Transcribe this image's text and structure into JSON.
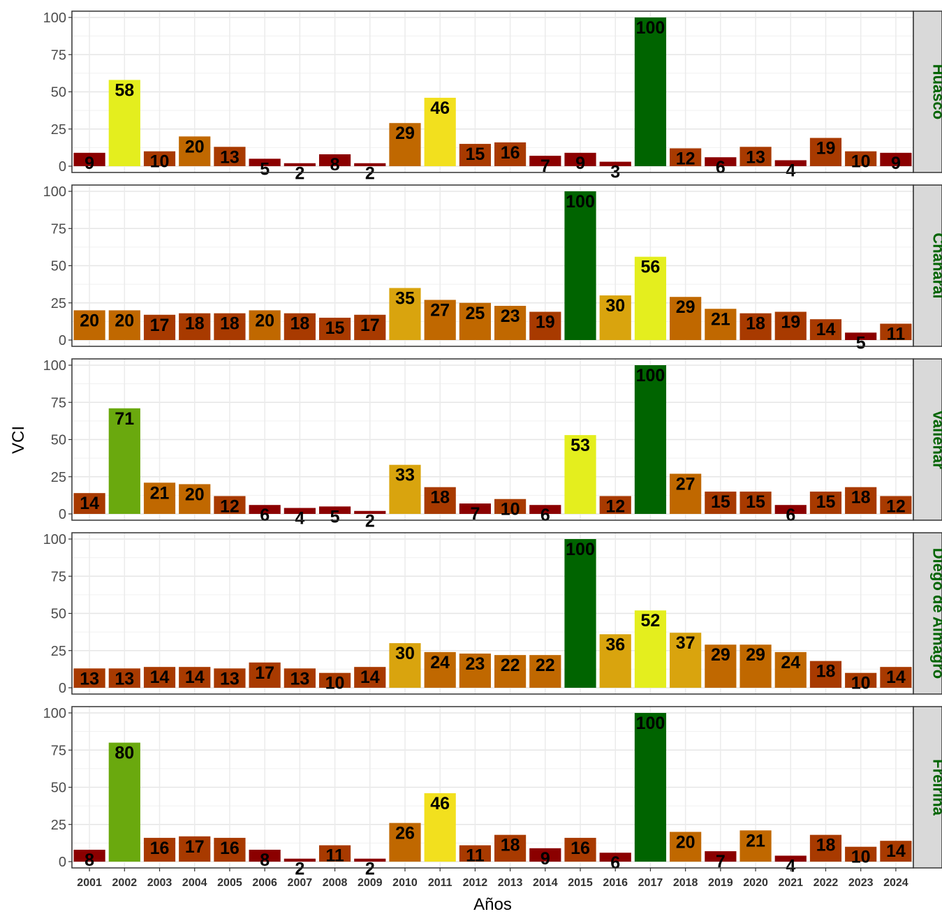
{
  "chart_data": {
    "type": "bar",
    "xlabel": "Años",
    "ylabel": "VCI",
    "ylim": [
      0,
      100
    ],
    "yticks": [
      0,
      25,
      50,
      75,
      100
    ],
    "grid": true,
    "categories": [
      "2001",
      "2002",
      "2003",
      "2004",
      "2005",
      "2006",
      "2007",
      "2008",
      "2009",
      "2010",
      "2011",
      "2012",
      "2013",
      "2014",
      "2015",
      "2016",
      "2017",
      "2018",
      "2019",
      "2020",
      "2021",
      "2022",
      "2023",
      "2024"
    ],
    "strip_text_color": "#006400",
    "color_scale": [
      "#8b0000",
      "#a83a00",
      "#c06800",
      "#d9a40e",
      "#e4ee1e",
      "#f2e01e",
      "#6aa90e",
      "#006400"
    ],
    "series": [
      {
        "name": "Huasco",
        "values": [
          9,
          58,
          10,
          20,
          13,
          5,
          2,
          8,
          2,
          29,
          46,
          15,
          16,
          7,
          9,
          3,
          100,
          12,
          6,
          13,
          4,
          19,
          10,
          9
        ]
      },
      {
        "name": "Chañaral",
        "values": [
          20,
          20,
          17,
          18,
          18,
          20,
          18,
          15,
          17,
          35,
          27,
          25,
          23,
          19,
          100,
          30,
          56,
          29,
          21,
          18,
          19,
          14,
          5,
          11
        ]
      },
      {
        "name": "Vallenar",
        "values": [
          14,
          71,
          21,
          20,
          12,
          6,
          4,
          5,
          2,
          33,
          18,
          7,
          10,
          6,
          53,
          12,
          100,
          27,
          15,
          15,
          6,
          15,
          18,
          12
        ]
      },
      {
        "name": "Diego de Almagro",
        "values": [
          13,
          13,
          14,
          14,
          13,
          17,
          13,
          10,
          14,
          30,
          24,
          23,
          22,
          22,
          100,
          36,
          52,
          37,
          29,
          29,
          24,
          18,
          10,
          14
        ]
      },
      {
        "name": "Freirina",
        "values": [
          8,
          80,
          16,
          17,
          16,
          8,
          2,
          11,
          2,
          26,
          46,
          11,
          18,
          9,
          16,
          6,
          100,
          20,
          7,
          21,
          4,
          18,
          10,
          14
        ]
      }
    ]
  }
}
